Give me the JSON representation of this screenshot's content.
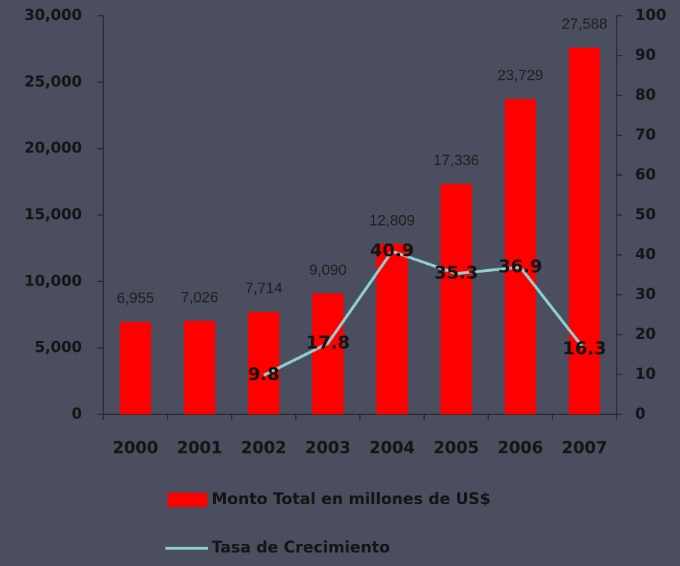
{
  "chart_data": {
    "type": "bar",
    "categories": [
      "2000",
      "2001",
      "2002",
      "2003",
      "2004",
      "2005",
      "2006",
      "2007"
    ],
    "series": [
      {
        "name": "Monto Total en millones de US$",
        "type": "bar",
        "color": "#ff0000",
        "values": [
          6955,
          7026,
          7714,
          9090,
          12809,
          17336,
          23729,
          27588
        ],
        "value_labels": [
          "6,955",
          "7,026",
          "7,714",
          "9,090",
          "12,809",
          "17,336",
          "23,729",
          "27,588"
        ]
      },
      {
        "name": "Tasa de Crecimiento",
        "type": "line",
        "axis": "y2",
        "color": "#8fd0d2",
        "values": [
          null,
          null,
          9.8,
          17.8,
          40.9,
          35.3,
          36.9,
          16.3
        ]
      }
    ],
    "ylim": [
      0,
      30000
    ],
    "yticks": [
      0,
      {
        "value": 5000,
        "label": "5,000"
      },
      {
        "value": 10000,
        "label": "10,000"
      },
      {
        "value": 15000,
        "label": "15,000"
      },
      {
        "value": 20000,
        "label": "20,000"
      },
      {
        "value": 25000,
        "label": "25,000"
      },
      {
        "value": 30000,
        "label": "30,000"
      }
    ],
    "y2lim": [
      0,
      100
    ],
    "y2ticks": [
      0,
      10,
      20,
      30,
      40,
      50,
      60,
      70,
      80,
      90,
      100
    ]
  }
}
